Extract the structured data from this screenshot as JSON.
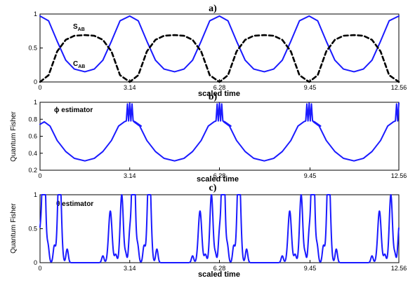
{
  "colors": {
    "blue": "#1a1aff",
    "black": "#000000"
  },
  "chart_data": [
    {
      "panel_label": "a)",
      "type": "line",
      "xlabel": "scaled time",
      "ylabel": "",
      "xlim": [
        0,
        12.56
      ],
      "ylim": [
        0,
        1
      ],
      "xticks": [
        "0",
        "3.14",
        "6.28",
        "9.45",
        "12.56"
      ],
      "yticks": [
        "0",
        "0.5",
        "1"
      ],
      "annotations": [
        {
          "name": "S",
          "sub": "AB",
          "x": 1.5,
          "y": 0.82
        },
        {
          "name": "C",
          "sub": "AB",
          "x": 1.5,
          "y": 0.26
        }
      ],
      "series": [
        {
          "label": "C_AB",
          "style": "solid",
          "color": "#1a1aff",
          "x": [
            0,
            0.3,
            0.6,
            0.9,
            1.2,
            1.57,
            1.9,
            2.2,
            2.5,
            2.8,
            3.14
          ],
          "y": [
            0.97,
            0.9,
            0.6,
            0.32,
            0.19,
            0.15,
            0.19,
            0.32,
            0.6,
            0.9,
            0.97
          ]
        },
        {
          "label": "S_AB",
          "style": "dashed",
          "color": "#000000",
          "x": [
            0,
            0.3,
            0.6,
            0.9,
            1.2,
            1.57,
            1.9,
            2.2,
            2.5,
            2.8,
            3.14
          ],
          "y": [
            0.0,
            0.1,
            0.45,
            0.62,
            0.68,
            0.69,
            0.68,
            0.62,
            0.45,
            0.1,
            0.0
          ]
        }
      ]
    },
    {
      "panel_label": "b)",
      "type": "line",
      "xlabel": "scaled time",
      "ylabel": "Quantum Fisher",
      "xlim": [
        0,
        12.56
      ],
      "ylim": [
        0.2,
        1
      ],
      "xticks": [
        "0",
        "3.14",
        "6.28",
        "9.45",
        "12.56"
      ],
      "yticks": [
        "0.2",
        "0.4",
        "0.6",
        "0.8",
        "1"
      ],
      "annotations": [
        {
          "text": "ϕ  estimator",
          "x": 0.55,
          "y": 0.88
        }
      ],
      "series": [
        {
          "label": "phi estimator",
          "style": "solid",
          "color": "#1a1aff",
          "x": [
            0,
            0.15,
            0.35,
            0.6,
            0.9,
            1.2,
            1.57,
            1.9,
            2.2,
            2.5,
            2.75,
            2.95,
            3.02,
            3.06,
            3.1,
            3.14,
            3.18,
            3.22,
            3.26,
            3.33,
            3.54
          ],
          "y": [
            0.74,
            0.77,
            0.72,
            0.55,
            0.42,
            0.34,
            0.31,
            0.34,
            0.42,
            0.55,
            0.72,
            0.77,
            0.78,
            0.98,
            0.78,
            0.99,
            0.78,
            0.98,
            0.78,
            0.77,
            0.72
          ]
        }
      ]
    },
    {
      "panel_label": "c)",
      "type": "line",
      "xlabel": "scaled time",
      "ylabel": "Quantum Fisher",
      "xlim": [
        0,
        12.56
      ],
      "ylim": [
        0,
        1
      ],
      "xticks": [
        "0",
        "3.14",
        "6.28",
        "9.45",
        "12.56"
      ],
      "yticks": [
        "0",
        "0.5",
        "1"
      ],
      "annotations": [
        {
          "text": "θ  estimator",
          "x": 0.55,
          "y": 0.88
        }
      ],
      "series": [
        {
          "label": "theta estimator",
          "style": "solid",
          "color": "#1a1aff",
          "peaks": [
            {
              "x": 0.0,
              "y": 0.2,
              "w": 0.04
            },
            {
              "x": 0.13,
              "y": 1.0,
              "w": 0.055
            },
            {
              "x": 0.28,
              "y": 0.12,
              "w": 0.04
            },
            {
              "x": 0.5,
              "y": 0.12,
              "w": 0.04
            },
            {
              "x": 0.68,
              "y": 0.76,
              "w": 0.06
            },
            {
              "x": 0.95,
              "y": 0.1,
              "w": 0.04
            },
            {
              "x": 2.2,
              "y": 0.1,
              "w": 0.04
            },
            {
              "x": 2.46,
              "y": 0.76,
              "w": 0.06
            },
            {
              "x": 2.65,
              "y": 0.12,
              "w": 0.04
            },
            {
              "x": 2.86,
              "y": 1.0,
              "w": 0.055
            },
            {
              "x": 3.0,
              "y": 0.12,
              "w": 0.035
            },
            {
              "x": 3.14,
              "y": 0.2,
              "w": 0.04
            },
            {
              "x": 3.27,
              "y": 1.0,
              "w": 0.055
            },
            {
              "x": 3.42,
              "y": 0.12,
              "w": 0.04
            },
            {
              "x": 3.64,
              "y": 0.12,
              "w": 0.04
            },
            {
              "x": 3.82,
              "y": 0.76,
              "w": 0.06
            },
            {
              "x": 4.09,
              "y": 0.1,
              "w": 0.04
            }
          ]
        }
      ]
    }
  ]
}
